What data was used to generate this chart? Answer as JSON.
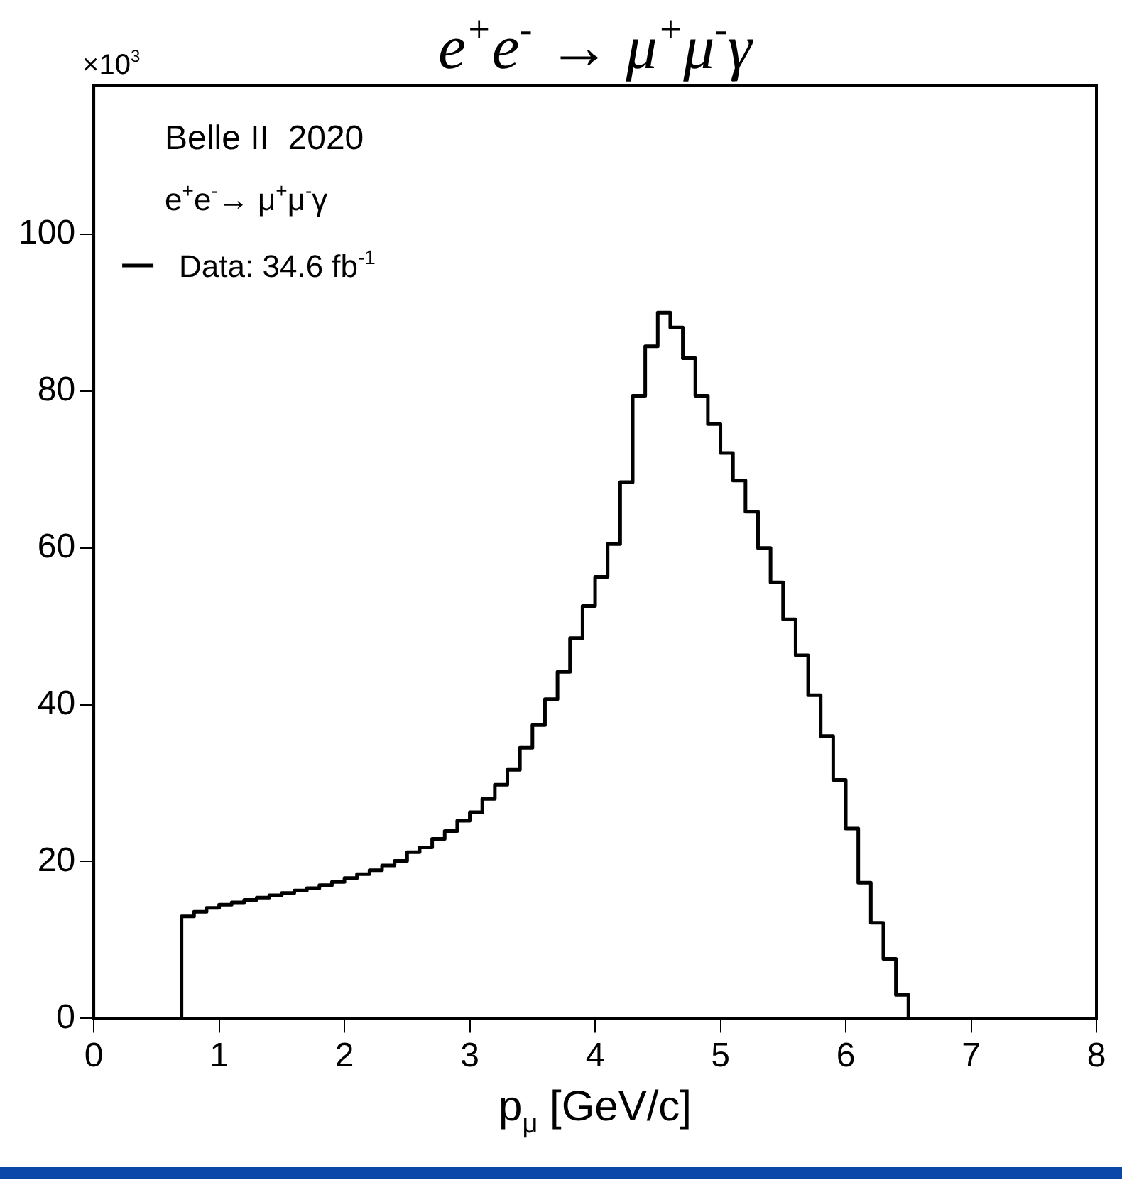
{
  "chart_data": {
    "type": "histogram",
    "title": "e$^{+}$e$^{-}$ → μ$^{+}$μ$^{-}$γ",
    "xlabel": "p$_{μ}$ [GeV/c]",
    "annotations": [
      "Belle II  2020",
      "e$^{+}$e$^{-}$→ μ$^{+}$μ$^{-}$γ",
      "×10$^{3}$"
    ],
    "bins": [
      0,
      0.1,
      0.2,
      0.3,
      0.4,
      0.5,
      0.6,
      0.7,
      0.8,
      0.9,
      1,
      1.1,
      1.2,
      1.3,
      1.4,
      1.5,
      1.6,
      1.7,
      1.8,
      1.9,
      2,
      2.1,
      2.2,
      2.3,
      2.4,
      2.5,
      2.6,
      2.7,
      2.8,
      2.9,
      3,
      3.1,
      3.2,
      3.3,
      3.4,
      3.5,
      3.6,
      3.7,
      3.8,
      3.9,
      4,
      4.1,
      4.2,
      4.3,
      4.4,
      4.5,
      4.6,
      4.7,
      4.8,
      4.9,
      5,
      5.1,
      5.2,
      5.3,
      5.4,
      5.5,
      5.6,
      5.7,
      5.8,
      5.9,
      6,
      6.1,
      6.2,
      6.3,
      6.4,
      6.5,
      6.6,
      6.7,
      6.8,
      6.9,
      7,
      7.1,
      7.2,
      7.3,
      7.4,
      7.5,
      7.6,
      7.7,
      7.8,
      7.9,
      8
    ],
    "series": [
      {
        "name": "Data: 34.6 fb$^{-1}$",
        "color": "#000000",
        "values": [
          0,
          0,
          0,
          0,
          0,
          0,
          0,
          13.0,
          13.6,
          14.1,
          14.5,
          14.8,
          15.1,
          15.4,
          15.7,
          16.0,
          16.3,
          16.6,
          17.0,
          17.4,
          17.9,
          18.4,
          18.9,
          19.5,
          20.1,
          21.2,
          21.8,
          22.9,
          23.9,
          25.2,
          26.3,
          28.0,
          29.8,
          31.7,
          34.5,
          37.4,
          40.7,
          44.2,
          48.5,
          52.6,
          56.3,
          60.5,
          68.4,
          79.4,
          85.7,
          90.0,
          88.1,
          84.2,
          79.4,
          75.8,
          72.1,
          68.6,
          64.6,
          60.0,
          55.6,
          50.9,
          46.3,
          41.2,
          36.0,
          30.4,
          24.2,
          17.3,
          12.2,
          7.6,
          3.0,
          0,
          0,
          0,
          0,
          0,
          0,
          0,
          0,
          0,
          0,
          0,
          0,
          0,
          0,
          0
        ]
      }
    ],
    "xlim": [
      0,
      8
    ],
    "xticks": [
      0,
      1,
      2,
      3,
      4,
      5,
      6,
      7,
      8
    ],
    "ylim": [
      0,
      119
    ],
    "yticks": [
      0,
      20,
      40,
      60,
      80,
      100
    ],
    "grid": false,
    "legend": "top left"
  }
}
